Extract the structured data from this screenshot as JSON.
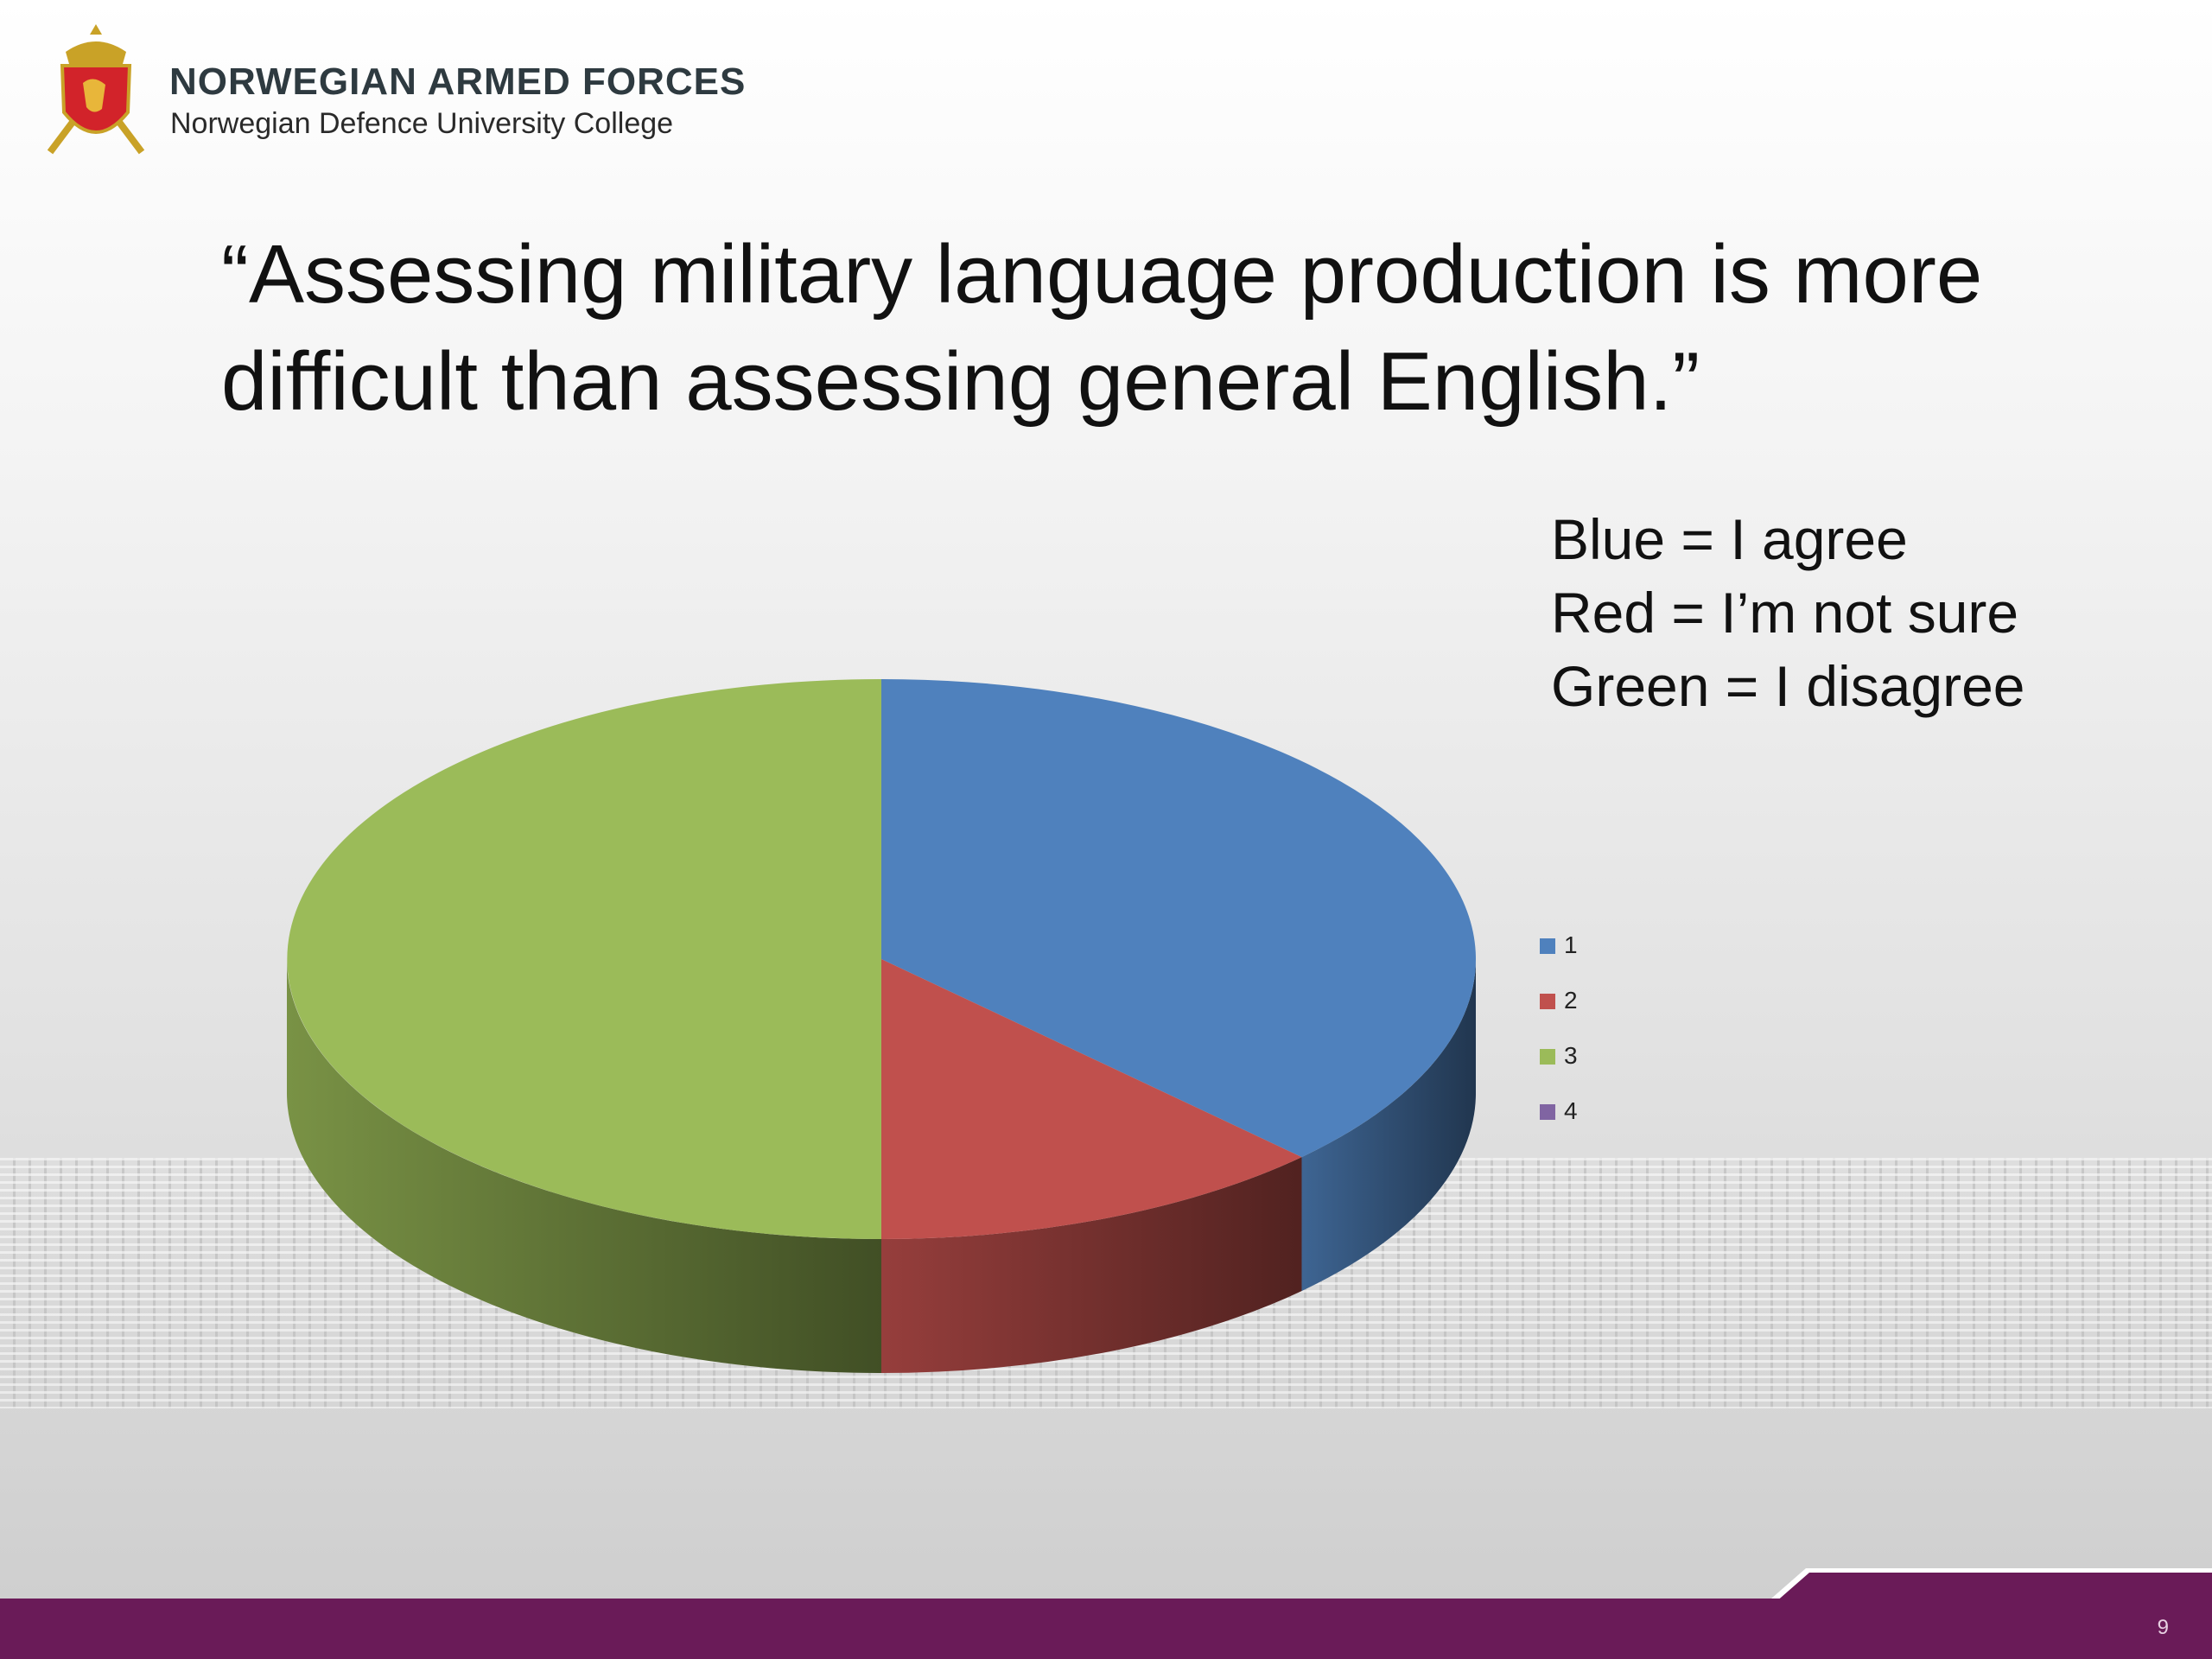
{
  "header": {
    "org_name": "NORWEGIAN ARMED FORCES",
    "org_subtitle": "Norwegian Defence University College"
  },
  "slide": {
    "title": "“Assessing military language production is more difficult than assessing general English.”",
    "legend_note": [
      "Blue = I agree",
      "Red = I’m not sure",
      "Green = I disagree"
    ],
    "page_number": "9"
  },
  "colors": {
    "blue": "#4f81bd",
    "red": "#c0504d",
    "green": "#9bbb59",
    "purple": "#8064a2",
    "footer": "#6a1b58"
  },
  "chart_data": {
    "type": "pie",
    "style": "3d",
    "categories": [
      "1",
      "2",
      "3",
      "4"
    ],
    "values": [
      37.5,
      12.5,
      50,
      0
    ],
    "colors": [
      "#4f81bd",
      "#c0504d",
      "#9bbb59",
      "#8064a2"
    ],
    "legend_position": "right"
  }
}
